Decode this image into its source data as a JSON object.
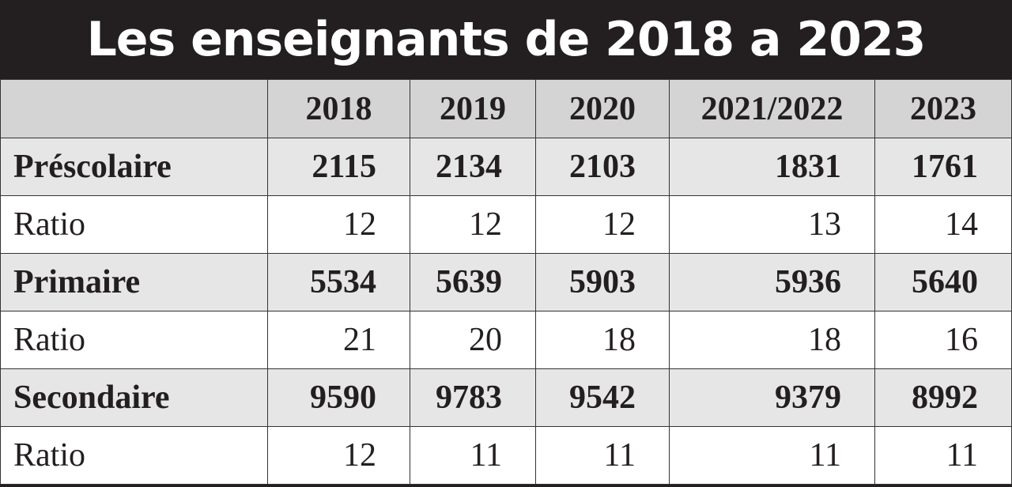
{
  "title": "Les enseignants de 2018 a 2023",
  "colors": {
    "title_bg": "#231f20",
    "header_bg": "#d4d4d4",
    "shaded_row": "#e6e6e6"
  },
  "chart_data": {
    "type": "table",
    "title": "Les enseignants de 2018 a 2023",
    "columns": [
      "",
      "2018",
      "2019",
      "2020",
      "2021/2022",
      "2023"
    ],
    "rows": [
      {
        "label": "Préscolaire",
        "values": [
          "2115",
          "2134",
          "2103",
          "1831",
          "1761"
        ]
      },
      {
        "label": "Ratio",
        "values": [
          "12",
          "12",
          "12",
          "13",
          "14"
        ]
      },
      {
        "label": "Primaire",
        "values": [
          "5534",
          "5639",
          "5903",
          "5936",
          "5640"
        ]
      },
      {
        "label": "Ratio",
        "values": [
          "21",
          "20",
          "18",
          "18",
          "16"
        ]
      },
      {
        "label": "Secondaire",
        "values": [
          "9590",
          "9783",
          "9542",
          "9379",
          "8992"
        ]
      },
      {
        "label": "Ratio",
        "values": [
          "12",
          "11",
          "11",
          "11",
          "11"
        ]
      }
    ]
  }
}
